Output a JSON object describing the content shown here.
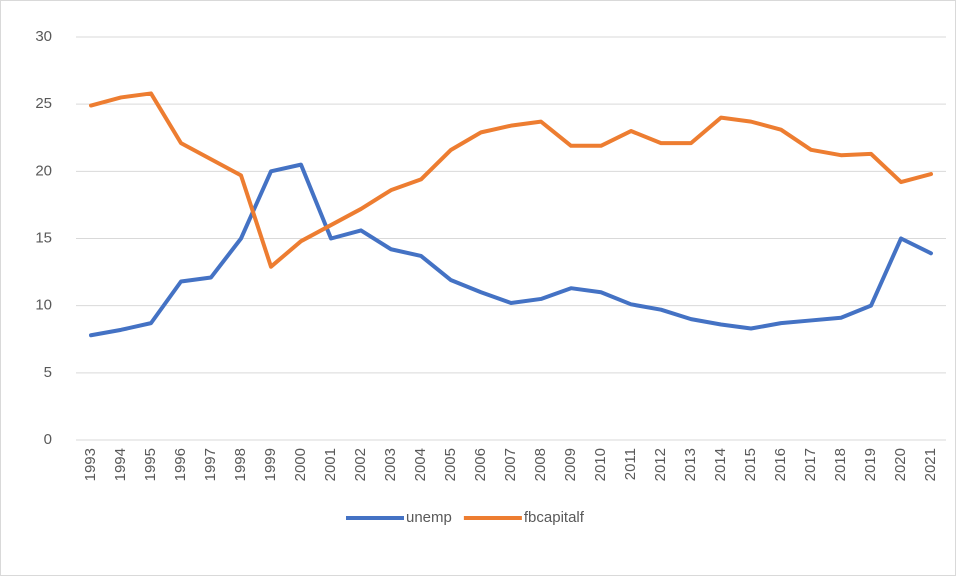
{
  "chart_data": {
    "type": "line",
    "categories": [
      "1993",
      "1994",
      "1995",
      "1996",
      "1997",
      "1998",
      "1999",
      "2000",
      "2001",
      "2002",
      "2003",
      "2004",
      "2005",
      "2006",
      "2007",
      "2008",
      "2009",
      "2010",
      "2011",
      "2012",
      "2013",
      "2014",
      "2015",
      "2016",
      "2017",
      "2018",
      "2019",
      "2020",
      "2021"
    ],
    "series": [
      {
        "name": "unemp",
        "color": "#4472c4",
        "values": [
          7.8,
          8.2,
          8.7,
          11.8,
          12.1,
          15.0,
          20.0,
          20.5,
          15.0,
          15.6,
          14.2,
          13.7,
          11.9,
          11.0,
          10.2,
          10.5,
          11.3,
          11.0,
          10.1,
          9.7,
          9.0,
          8.6,
          8.3,
          8.7,
          8.9,
          9.1,
          10.0,
          15.0,
          13.9
        ]
      },
      {
        "name": "fbcapitalf",
        "color": "#ed7d31",
        "values": [
          24.9,
          25.5,
          25.8,
          22.1,
          20.9,
          19.7,
          12.9,
          14.8,
          16.0,
          17.2,
          18.6,
          19.4,
          21.6,
          22.9,
          23.4,
          23.7,
          21.9,
          21.9,
          23.0,
          22.1,
          22.1,
          24.0,
          23.7,
          23.1,
          21.6,
          21.2,
          21.3,
          19.2,
          19.8
        ]
      }
    ],
    "ylim": [
      0,
      30
    ],
    "yticks": [
      0,
      5,
      10,
      15,
      20,
      25,
      30
    ],
    "grid": true,
    "legend": "bottom"
  }
}
